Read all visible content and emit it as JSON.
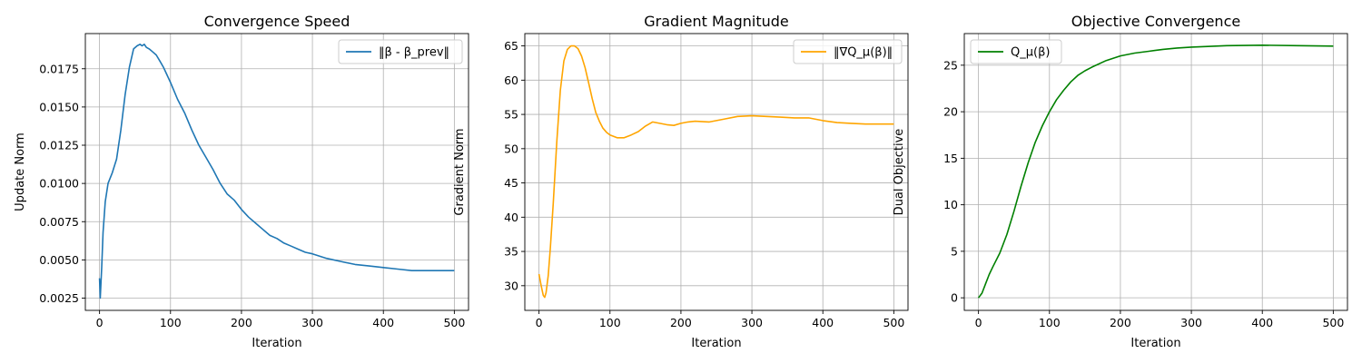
{
  "chart_data": [
    {
      "type": "line",
      "title": "Convergence Speed",
      "xlabel": "Iteration",
      "ylabel": "Update Norm",
      "xlim": [
        -20,
        520
      ],
      "ylim": [
        0.0017,
        0.0198
      ],
      "xticks": [
        0,
        100,
        200,
        300,
        400,
        500
      ],
      "xtick_labels": [
        "0",
        "100",
        "200",
        "300",
        "400",
        "500"
      ],
      "yticks": [
        0.0025,
        0.005,
        0.0075,
        0.01,
        0.0125,
        0.015,
        0.0175
      ],
      "ytick_labels": [
        "0.0025",
        "0.0050",
        "0.0075",
        "0.0100",
        "0.0125",
        "0.0150",
        "0.0175"
      ],
      "grid": true,
      "legend": "upper right",
      "series": [
        {
          "name": "‖β - β_prev‖",
          "color": "#1f77b4",
          "x": [
            0,
            1,
            3,
            5,
            8,
            12,
            18,
            24,
            30,
            36,
            42,
            48,
            53,
            57,
            60,
            63,
            66,
            70,
            75,
            80,
            85,
            90,
            95,
            100,
            110,
            120,
            130,
            140,
            150,
            160,
            170,
            180,
            190,
            200,
            210,
            220,
            230,
            240,
            250,
            260,
            270,
            280,
            290,
            300,
            320,
            340,
            360,
            380,
            400,
            420,
            440,
            460,
            480,
            500
          ],
          "y": [
            0.0038,
            0.0025,
            0.0045,
            0.0068,
            0.0088,
            0.01,
            0.0107,
            0.0116,
            0.0135,
            0.0158,
            0.0176,
            0.0188,
            0.019,
            0.0191,
            0.019,
            0.0191,
            0.0189,
            0.0188,
            0.0186,
            0.0184,
            0.018,
            0.0176,
            0.0171,
            0.0166,
            0.0155,
            0.0146,
            0.0135,
            0.0125,
            0.0117,
            0.0109,
            0.01,
            0.0093,
            0.0089,
            0.0083,
            0.0078,
            0.0074,
            0.007,
            0.0066,
            0.0064,
            0.0061,
            0.0059,
            0.0057,
            0.0055,
            0.0054,
            0.0051,
            0.0049,
            0.0047,
            0.0046,
            0.0045,
            0.0044,
            0.0043,
            0.0043,
            0.0043,
            0.0043
          ]
        }
      ]
    },
    {
      "type": "line",
      "title": "Gradient Magnitude",
      "xlabel": "Iteration",
      "ylabel": "Gradient Norm",
      "xlim": [
        -20,
        520
      ],
      "ylim": [
        26.4,
        66.8
      ],
      "xticks": [
        0,
        100,
        200,
        300,
        400,
        500
      ],
      "xtick_labels": [
        "0",
        "100",
        "200",
        "300",
        "400",
        "500"
      ],
      "yticks": [
        30,
        35,
        40,
        45,
        50,
        55,
        60,
        65
      ],
      "ytick_labels": [
        "30",
        "35",
        "40",
        "45",
        "50",
        "55",
        "60",
        "65"
      ],
      "grid": true,
      "legend": "upper right",
      "series": [
        {
          "name": "‖∇Q_μ(β)‖",
          "color": "#ffa500",
          "x": [
            0,
            3,
            6,
            8,
            10,
            13,
            16,
            20,
            25,
            30,
            35,
            40,
            45,
            50,
            55,
            60,
            65,
            70,
            75,
            80,
            85,
            90,
            95,
            100,
            105,
            110,
            115,
            120,
            125,
            130,
            140,
            150,
            160,
            170,
            180,
            190,
            200,
            210,
            220,
            240,
            260,
            280,
            300,
            320,
            340,
            360,
            380,
            400,
            420,
            440,
            460,
            480,
            500
          ],
          "y": [
            31.7,
            30.0,
            28.6,
            28.3,
            29.0,
            31.5,
            35.5,
            42.0,
            51.0,
            58.5,
            62.8,
            64.5,
            65.0,
            65.0,
            64.6,
            63.5,
            61.8,
            59.6,
            57.3,
            55.3,
            54.0,
            53.0,
            52.4,
            52.0,
            51.8,
            51.6,
            51.6,
            51.6,
            51.8,
            52.0,
            52.5,
            53.3,
            53.9,
            53.7,
            53.5,
            53.4,
            53.7,
            53.9,
            54.0,
            53.9,
            54.3,
            54.7,
            54.8,
            54.7,
            54.6,
            54.5,
            54.5,
            54.1,
            53.8,
            53.7,
            53.6,
            53.6,
            53.6
          ]
        }
      ]
    },
    {
      "type": "line",
      "title": "Objective Convergence",
      "xlabel": "Iteration",
      "ylabel": "Dual Objective",
      "xlim": [
        -20,
        520
      ],
      "ylim": [
        -1.35,
        28.4
      ],
      "xticks": [
        0,
        100,
        200,
        300,
        400,
        500
      ],
      "xtick_labels": [
        "0",
        "100",
        "200",
        "300",
        "400",
        "500"
      ],
      "yticks": [
        0,
        5,
        10,
        15,
        20,
        25
      ],
      "ytick_labels": [
        "0",
        "5",
        "10",
        "15",
        "20",
        "25"
      ],
      "grid": true,
      "legend": "upper left",
      "series": [
        {
          "name": "Q_μ(β)",
          "color": "#008000",
          "x": [
            0,
            5,
            10,
            15,
            20,
            30,
            40,
            50,
            60,
            70,
            80,
            90,
            100,
            110,
            120,
            130,
            140,
            150,
            160,
            180,
            200,
            220,
            240,
            260,
            280,
            300,
            350,
            400,
            450,
            500
          ],
          "y": [
            0.0,
            0.5,
            1.5,
            2.5,
            3.3,
            4.8,
            6.8,
            9.3,
            12.0,
            14.5,
            16.7,
            18.5,
            20.0,
            21.3,
            22.3,
            23.2,
            23.9,
            24.4,
            24.8,
            25.5,
            26.0,
            26.3,
            26.5,
            26.7,
            26.85,
            26.95,
            27.1,
            27.15,
            27.1,
            27.05
          ]
        }
      ]
    }
  ]
}
